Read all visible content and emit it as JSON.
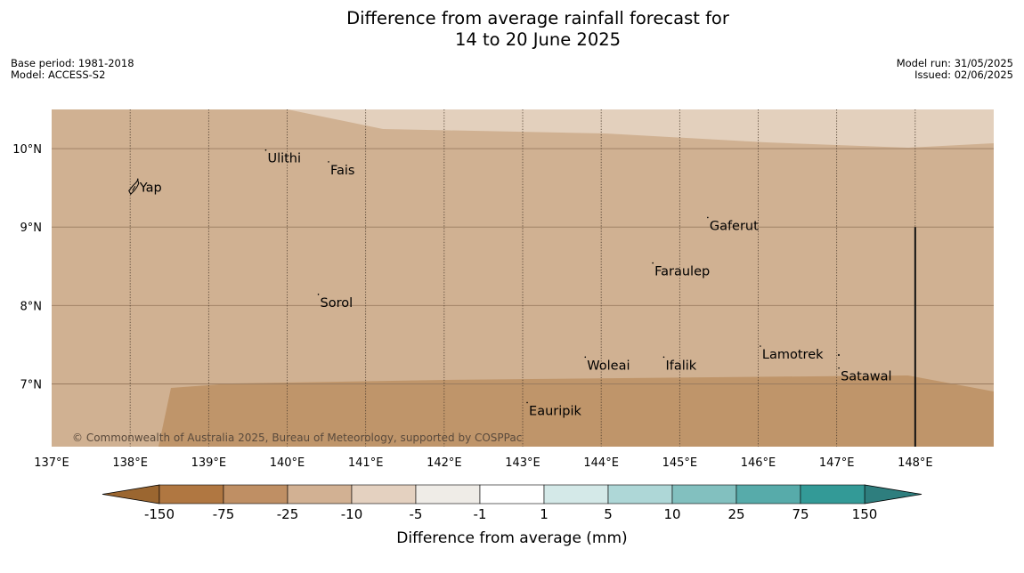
{
  "title_line1": "Difference from average rainfall forecast for",
  "title_line2": "14 to 20 June 2025",
  "meta_left": {
    "base_period": "Base period: 1981-2018",
    "model": "Model: ACCESS-S2"
  },
  "meta_right": {
    "model_run": "Model run: 31/05/2025",
    "issued": "Issued: 02/06/2025"
  },
  "map": {
    "x_ticks": [
      {
        "value": 137,
        "label": "137°E"
      },
      {
        "value": 138,
        "label": "138°E"
      },
      {
        "value": 139,
        "label": "139°E"
      },
      {
        "value": 140,
        "label": "140°E"
      },
      {
        "value": 141,
        "label": "141°E"
      },
      {
        "value": 142,
        "label": "142°E"
      },
      {
        "value": 143,
        "label": "143°E"
      },
      {
        "value": 144,
        "label": "144°E"
      },
      {
        "value": 145,
        "label": "145°E"
      },
      {
        "value": 146,
        "label": "146°E"
      },
      {
        "value": 147,
        "label": "147°E"
      },
      {
        "value": 148,
        "label": "148°E"
      }
    ],
    "y_ticks": [
      {
        "value": 10,
        "label": "10°N"
      },
      {
        "value": 9,
        "label": "9°N"
      },
      {
        "value": 8,
        "label": "8°N"
      },
      {
        "value": 7,
        "label": "7°N"
      }
    ],
    "lon_range": [
      137,
      149
    ],
    "lat_range": [
      6.2,
      10.5
    ],
    "colors": {
      "light": "#e3d0bd",
      "mid": "#d0b192",
      "dark": "#bf956a"
    },
    "places": [
      {
        "name": "Ulithi",
        "lon": 139.75,
        "lat": 9.88
      },
      {
        "name": "Fais",
        "lon": 140.55,
        "lat": 9.73
      },
      {
        "name": "Yap",
        "lon": 138.12,
        "lat": 9.51
      },
      {
        "name": "Gaferut",
        "lon": 145.38,
        "lat": 9.02
      },
      {
        "name": "Faraulep",
        "lon": 144.68,
        "lat": 8.44
      },
      {
        "name": "Sorol",
        "lon": 140.42,
        "lat": 8.04
      },
      {
        "name": "Lamotrek",
        "lon": 146.05,
        "lat": 7.38
      },
      {
        "name": "Woleai",
        "lon": 143.82,
        "lat": 7.24
      },
      {
        "name": "Ifalik",
        "lon": 144.82,
        "lat": 7.24
      },
      {
        "name": "Satawal",
        "lon": 147.05,
        "lat": 7.1
      },
      {
        "name": "Eauripik",
        "lon": 143.08,
        "lat": 6.66
      }
    ],
    "credit": "© Commonwealth of Australia 2025, Bureau of Meteorology, supported by COSPPac"
  },
  "colorbar": {
    "colors": [
      "#b07741",
      "#bf8f64",
      "#d2b193",
      "#e4d1c0",
      "#efece7",
      "#ffffff",
      "#d4e9e8",
      "#aed7d7",
      "#82c0bf",
      "#57abaa",
      "#339a97"
    ],
    "low_color": "#9b6630",
    "high_color": "#2e7e7e",
    "ticks": [
      "-150",
      "-75",
      "-25",
      "-10",
      "-5",
      "-1",
      "1",
      "5",
      "10",
      "25",
      "75",
      "150"
    ],
    "label": "Difference from average (mm)"
  }
}
